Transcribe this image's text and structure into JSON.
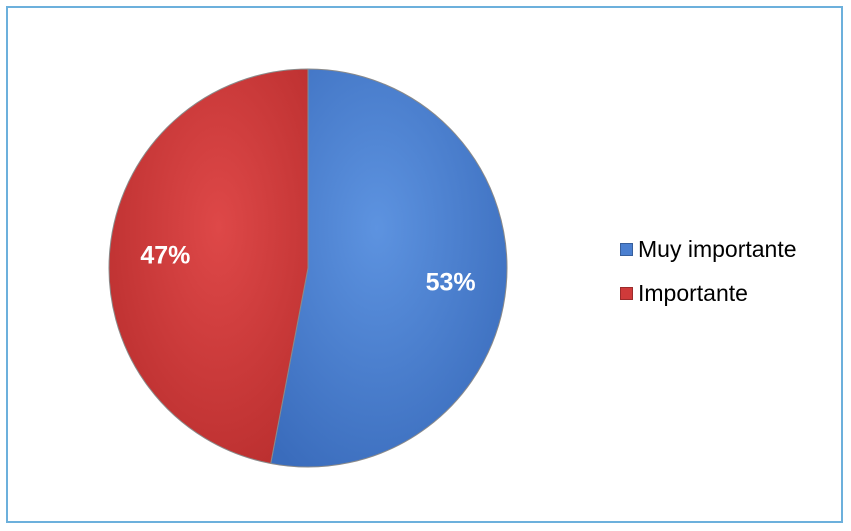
{
  "chart_data": {
    "type": "pie",
    "categories": [
      "Muy importante",
      "Importante"
    ],
    "values": [
      53,
      47
    ],
    "labels": [
      "53%",
      "47%"
    ],
    "colors": [
      "#4a7fd0",
      "#cf3a3a"
    ],
    "title": "",
    "legend_position": "right"
  }
}
